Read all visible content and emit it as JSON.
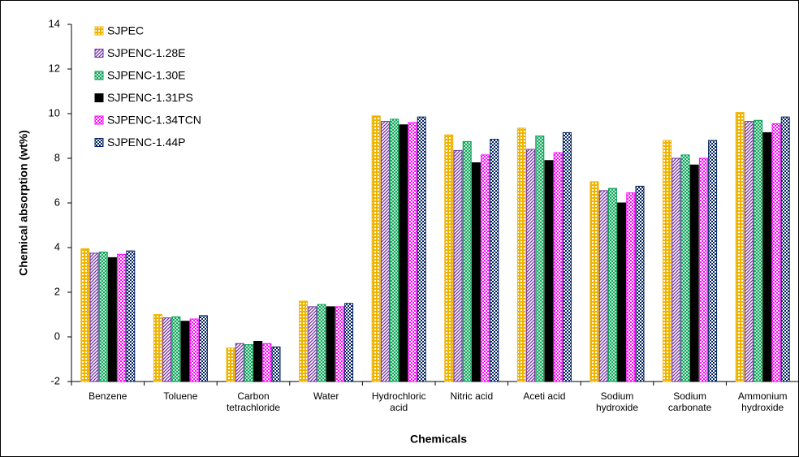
{
  "chart_data": {
    "type": "bar",
    "xlabel": "Chemicals",
    "ylabel": "Chemical absorption  (wt%)",
    "categories": [
      "Benzene",
      "Toluene",
      "Carbon tetrachloride",
      "Water",
      "Hydrochloric acid",
      "Nitric acid",
      "Aceti acid",
      "Sodium hydroxide",
      "Sodium carbonate",
      "Ammonium hydroxide"
    ],
    "series": [
      {
        "name": "SJPEC",
        "color": "#f0b400",
        "values": [
          3.95,
          1.0,
          -0.5,
          1.6,
          9.9,
          9.05,
          9.35,
          6.95,
          8.8,
          10.05
        ]
      },
      {
        "name": "SJPENC-1.28E",
        "color": "#7030a0",
        "values": [
          3.75,
          0.85,
          -0.3,
          1.35,
          9.65,
          8.35,
          8.4,
          6.55,
          8.0,
          9.65
        ]
      },
      {
        "name": "SJPENC-1.30E",
        "color": "#00a050",
        "values": [
          3.8,
          0.9,
          -0.35,
          1.45,
          9.75,
          8.75,
          9.0,
          6.65,
          8.15,
          9.7
        ]
      },
      {
        "name": "SJPENC-1.31PS",
        "color": "#000000",
        "values": [
          3.55,
          0.7,
          -0.2,
          1.35,
          9.5,
          7.8,
          7.9,
          6.0,
          7.7,
          9.15
        ]
      },
      {
        "name": "SJPENC-1.34TCN",
        "color": "#ff00ff",
        "values": [
          3.7,
          0.8,
          -0.3,
          1.35,
          9.6,
          8.15,
          8.25,
          6.45,
          8.0,
          9.55
        ]
      },
      {
        "name": "SJPENC-1.44P",
        "color": "#002060",
        "values": [
          3.85,
          0.95,
          -0.45,
          1.5,
          9.85,
          8.85,
          9.15,
          6.75,
          8.8,
          9.85
        ]
      }
    ],
    "ylim": [
      -2,
      14
    ],
    "yticks": [
      -2,
      0,
      2,
      4,
      6,
      8,
      10,
      12,
      14
    ],
    "grid": false,
    "legend": "top-left"
  }
}
